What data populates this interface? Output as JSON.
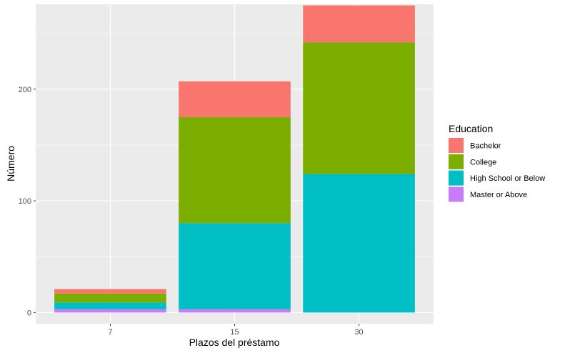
{
  "chart_data": {
    "type": "bar",
    "stacked": true,
    "title": "",
    "xlabel": "Plazos del préstamo",
    "ylabel": "Número",
    "categories": [
      "7",
      "15",
      "30"
    ],
    "ylim": [
      -10,
      276
    ],
    "yticks": [
      0,
      100,
      200
    ],
    "grid": true,
    "legend": {
      "title": "Education",
      "position": "right"
    },
    "series": [
      {
        "name": "Bachelor",
        "color": "#F8766D",
        "values": [
          4,
          32,
          33
        ]
      },
      {
        "name": "College",
        "color": "#7CAE00",
        "values": [
          8,
          95,
          118
        ]
      },
      {
        "name": "High School or Below",
        "color": "#00BFC4",
        "values": [
          6,
          77,
          124
        ]
      },
      {
        "name": "Master or Above",
        "color": "#C77CFF",
        "values": [
          3,
          3,
          0
        ]
      }
    ]
  }
}
